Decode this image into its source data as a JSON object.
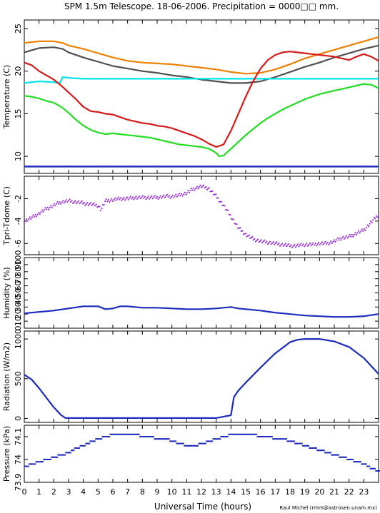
{
  "figure": {
    "title": "SPM 1.5m Telescope. 18-06-2006. Precipitation = 0000□□ mm.",
    "xlabel": "Universal Time (hours)",
    "credit": "Raul Michel (rmm@astrosen.unam.mx)"
  },
  "chart_data": [
    {
      "type": "line",
      "ylabel": "Temperature (C)",
      "xlim": [
        0,
        24
      ],
      "ylim": [
        8,
        26
      ],
      "yticks": [
        10,
        15,
        20,
        25
      ],
      "series": [
        {
          "color": "#f08000",
          "x": [
            0,
            1,
            2,
            2.6,
            3,
            4,
            5,
            6,
            7,
            8,
            9,
            10,
            11,
            12,
            13,
            14,
            15,
            16,
            17,
            18,
            19,
            20,
            21,
            22,
            23,
            24
          ],
          "y": [
            23.3,
            23.5,
            23.5,
            23.3,
            23.0,
            22.6,
            22.1,
            21.6,
            21.2,
            21.0,
            20.9,
            20.8,
            20.6,
            20.4,
            20.2,
            19.9,
            19.7,
            19.8,
            20.2,
            20.8,
            21.5,
            22.0,
            22.5,
            23.0,
            23.5,
            24.0
          ]
        },
        {
          "color": "#505050",
          "x": [
            0,
            1,
            2,
            2.6,
            3,
            4,
            5,
            6,
            7,
            8,
            9,
            10,
            11,
            12,
            13,
            14,
            15,
            16,
            17,
            18,
            19,
            20,
            21,
            22,
            23,
            24
          ],
          "y": [
            22.2,
            22.7,
            22.8,
            22.6,
            22.2,
            21.6,
            21.1,
            20.6,
            20.3,
            20.0,
            19.8,
            19.5,
            19.3,
            19.0,
            18.8,
            18.6,
            18.6,
            18.8,
            19.3,
            19.9,
            20.5,
            21.0,
            21.6,
            22.1,
            22.6,
            23.0
          ]
        },
        {
          "color": "#00e5ee",
          "x": [
            0,
            1,
            2,
            2.4,
            2.6,
            3,
            4,
            5,
            6,
            8,
            10,
            12,
            14,
            16,
            18,
            20,
            22,
            24
          ],
          "y": [
            18.6,
            18.8,
            18.7,
            18.6,
            19.3,
            19.2,
            19.1,
            19.1,
            19.1,
            19.1,
            19.1,
            19.1,
            19.1,
            19.1,
            19.1,
            19.1,
            19.1,
            19.1
          ]
        },
        {
          "color": "#d71a1a",
          "x": [
            0,
            0.5,
            1,
            1.5,
            2,
            2.5,
            3,
            3.5,
            4,
            4.5,
            5,
            5.5,
            6,
            6.5,
            7,
            7.5,
            8,
            8.5,
            9,
            9.5,
            10,
            10.5,
            11,
            11.5,
            12,
            12.5,
            13,
            13.5,
            14,
            14.5,
            15,
            15.5,
            16,
            16.5,
            17,
            17.5,
            18,
            18.5,
            19,
            19.5,
            20,
            20.5,
            21,
            21.5,
            22,
            22.5,
            23,
            23.5,
            24
          ],
          "y": [
            21.0,
            20.7,
            20.0,
            19.5,
            19.0,
            18.3,
            17.5,
            16.7,
            15.8,
            15.3,
            15.2,
            15.0,
            14.9,
            14.6,
            14.3,
            14.1,
            13.9,
            13.8,
            13.6,
            13.5,
            13.3,
            13.0,
            12.7,
            12.4,
            12.0,
            11.5,
            11.1,
            11.4,
            13.0,
            15.0,
            17.0,
            18.8,
            20.3,
            21.3,
            21.9,
            22.2,
            22.3,
            22.2,
            22.1,
            22.0,
            21.9,
            21.8,
            21.7,
            21.5,
            21.3,
            21.7,
            22.0,
            21.7,
            21.2
          ]
        },
        {
          "color": "#22dd22",
          "x": [
            0,
            0.5,
            1,
            1.5,
            2,
            2.5,
            3,
            3.5,
            4,
            4.5,
            5,
            5.5,
            6,
            6.5,
            7,
            7.5,
            8,
            8.5,
            9,
            9.5,
            10,
            10.5,
            11,
            11.5,
            12,
            12.5,
            13,
            13.2,
            13.5,
            14,
            14.5,
            15,
            15.5,
            16,
            16.5,
            17,
            17.5,
            18,
            18.5,
            19,
            19.5,
            20,
            20.5,
            21,
            21.5,
            22,
            22.5,
            23,
            23.5,
            24
          ],
          "y": [
            17.1,
            17.0,
            16.8,
            16.5,
            16.3,
            15.8,
            15.1,
            14.3,
            13.6,
            13.1,
            12.8,
            12.6,
            12.7,
            12.6,
            12.5,
            12.4,
            12.3,
            12.2,
            12.0,
            11.8,
            11.6,
            11.4,
            11.3,
            11.2,
            11.1,
            10.9,
            10.4,
            10.0,
            10.1,
            10.9,
            11.7,
            12.5,
            13.2,
            13.9,
            14.5,
            15.0,
            15.5,
            15.9,
            16.3,
            16.7,
            17.0,
            17.3,
            17.5,
            17.7,
            17.9,
            18.1,
            18.3,
            18.5,
            18.4,
            18.0
          ]
        },
        {
          "color": "#1c2bbd",
          "x": [
            0,
            24
          ],
          "y": [
            8.8,
            8.8
          ]
        }
      ]
    },
    {
      "type": "scatter",
      "ylabel": "Tpri-Tdome (C)",
      "xlim": [
        0,
        24
      ],
      "ylim": [
        -7,
        0
      ],
      "yticks": [
        -6,
        -4,
        -2
      ],
      "series": [
        {
          "color": "#9b30d6",
          "x": [
            0,
            0.5,
            1,
            1.5,
            2,
            2.5,
            3,
            3.5,
            4,
            4.5,
            5,
            5.2,
            5.5,
            6,
            6.5,
            7,
            7.5,
            8,
            8.5,
            9,
            9.5,
            10,
            10.5,
            11,
            11.5,
            12,
            12.5,
            13,
            13.5,
            14,
            14.5,
            15,
            15.5,
            16,
            16.5,
            17,
            17.5,
            18,
            18.5,
            19,
            19.5,
            20,
            20.5,
            21,
            21.5,
            22,
            22.5,
            23,
            23.5,
            24
          ],
          "y": [
            -4.0,
            -3.7,
            -3.3,
            -2.9,
            -2.6,
            -2.3,
            -2.2,
            -2.3,
            -2.4,
            -2.5,
            -2.6,
            -3.0,
            -2.2,
            -2.1,
            -2.0,
            -2.0,
            -1.9,
            -1.9,
            -1.9,
            -1.9,
            -1.8,
            -1.8,
            -1.7,
            -1.5,
            -1.1,
            -0.9,
            -1.1,
            -1.8,
            -2.6,
            -3.6,
            -4.6,
            -5.2,
            -5.6,
            -5.8,
            -5.9,
            -6.0,
            -6.1,
            -6.2,
            -6.2,
            -6.1,
            -6.1,
            -6.0,
            -6.0,
            -5.8,
            -5.5,
            -5.4,
            -5.1,
            -4.8,
            -4.1,
            -3.4
          ]
        }
      ]
    },
    {
      "type": "line",
      "ylabel": "Humidity (%)",
      "xlim": [
        0,
        24
      ],
      "ylim": [
        0,
        100
      ],
      "yticks": [
        0,
        10,
        20,
        30,
        40,
        50,
        60,
        70,
        80,
        90,
        100
      ],
      "series": [
        {
          "color": "#1c2bbd",
          "x": [
            0,
            1,
            2,
            3,
            4,
            5,
            5.5,
            6,
            6.5,
            7,
            8,
            9,
            10,
            11,
            12,
            13,
            14,
            14.5,
            15,
            16,
            17,
            18,
            19,
            20,
            21,
            22,
            23,
            24
          ],
          "y": [
            21,
            23,
            25,
            28,
            31,
            31,
            27,
            28,
            31,
            31,
            29,
            29,
            28,
            27,
            27,
            28,
            30,
            28,
            27,
            25,
            22,
            20,
            18,
            17,
            16,
            16,
            17,
            20
          ]
        }
      ]
    },
    {
      "type": "line",
      "ylabel": "Radiation (W/m2)",
      "xlim": [
        0,
        24
      ],
      "ylim": [
        -50,
        1100
      ],
      "yticks": [
        0,
        500,
        1000
      ],
      "series": [
        {
          "color": "#1c2bbd",
          "x": [
            0,
            0.5,
            1,
            1.5,
            2,
            2.5,
            2.8,
            3,
            5,
            7,
            9,
            11,
            13,
            14,
            14.2,
            14.5,
            15,
            16,
            17,
            18,
            18.5,
            19,
            20,
            21,
            22,
            23,
            24
          ],
          "y": [
            550,
            490,
            380,
            260,
            140,
            40,
            5,
            5,
            5,
            5,
            5,
            5,
            5,
            40,
            270,
            350,
            450,
            640,
            820,
            960,
            990,
            1000,
            1000,
            970,
            900,
            760,
            560
          ]
        }
      ]
    },
    {
      "type": "scatter",
      "ylabel": "Pressure (kPa)",
      "xlim": [
        0,
        24
      ],
      "ylim": [
        73.9,
        74.15
      ],
      "yticks": [
        73.9,
        74.0,
        74.1
      ],
      "series": [
        {
          "color": "#1c2bbd",
          "x": [
            0,
            0.5,
            1,
            1.5,
            2,
            2.5,
            3,
            3.5,
            4,
            4.5,
            5,
            5.5,
            6,
            6.5,
            7,
            7.5,
            8,
            8.5,
            9,
            9.5,
            10,
            10.5,
            11,
            11.5,
            12,
            12.5,
            13,
            13.5,
            14,
            14.5,
            15,
            15.5,
            16,
            16.5,
            17,
            17.5,
            18,
            18.5,
            19,
            19.5,
            20,
            20.5,
            21,
            21.5,
            22,
            22.5,
            23,
            23.5,
            24
          ],
          "y": [
            73.97,
            73.98,
            73.99,
            74.0,
            74.01,
            74.02,
            74.03,
            74.05,
            74.06,
            74.08,
            74.09,
            74.1,
            74.11,
            74.11,
            74.11,
            74.11,
            74.1,
            74.1,
            74.09,
            74.09,
            74.08,
            74.07,
            74.06,
            74.06,
            74.07,
            74.08,
            74.09,
            74.1,
            74.11,
            74.11,
            74.11,
            74.11,
            74.1,
            74.1,
            74.09,
            74.09,
            74.08,
            74.07,
            74.06,
            74.05,
            74.04,
            74.03,
            74.02,
            74.01,
            74.0,
            73.99,
            73.98,
            73.96,
            73.95
          ]
        }
      ]
    }
  ],
  "xaxis": {
    "ticks": [
      0,
      1,
      2,
      3,
      4,
      5,
      6,
      7,
      8,
      9,
      10,
      11,
      12,
      13,
      14,
      15,
      16,
      17,
      18,
      19,
      20,
      21,
      22,
      23
    ]
  }
}
